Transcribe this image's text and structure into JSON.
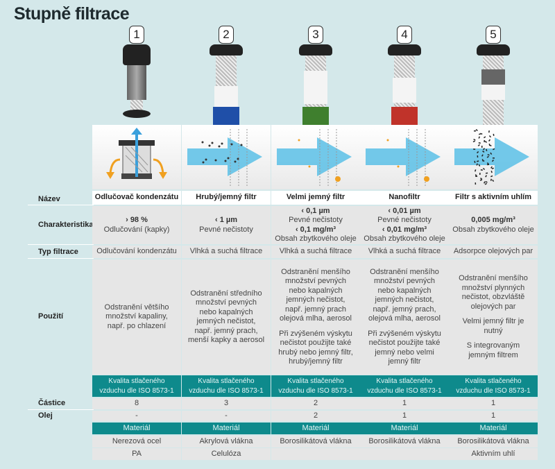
{
  "title": "Stupně filtrace",
  "stages": [
    {
      "number": "1",
      "sleeve_color": "#222222",
      "name": "Odlučovač kondenzátu",
      "char": [
        "› 98 %",
        "Odlučování (kapky)"
      ],
      "typ": "Odlučování kondenzátu",
      "pouziti": [
        "Odstranění většího množství kapaliny, např. po chlazení"
      ],
      "kvalita": "Kvalita stlačeného vzduchu dle ISO 8573-1",
      "castice": "8",
      "olej": "-",
      "material_header": "Materiál",
      "material": [
        "Nerezová ocel",
        "PA"
      ]
    },
    {
      "number": "2",
      "sleeve_color": "#1f4fa8",
      "name": "Hrubý/jemný filtr",
      "char": [
        "‹ 1 µm",
        "Pevné nečistoty"
      ],
      "typ": "Vlhká a suchá filtrace",
      "pouziti": [
        "Odstranění středního množství pevných nebo kapalných jemných nečistot, např. jemný prach, menší kapky a aerosol"
      ],
      "kvalita": "Kvalita stlačeného vzduchu dle ISO 8573-1",
      "castice": "3",
      "olej": "-",
      "material_header": "Materiál",
      "material": [
        "Akrylová vlákna",
        "Celulóza"
      ]
    },
    {
      "number": "3",
      "sleeve_color": "#3f7f2e",
      "name": "Velmi jemný filtr",
      "char": [
        "‹ 0,1 µm",
        "Pevné nečistoty",
        "‹ 0,1 mg/m³",
        "Obsah zbytkového oleje"
      ],
      "typ": "Vlhká a suchá filtrace",
      "pouziti": [
        "Odstranění menšího množství pevných nebo kapalných jemných nečistot, např. jemný prach olejová mlha, aerosol",
        "Při zvýšeném výskytu nečistot použijte také hrubý nebo jemný filtr, hrubý/jemný filtr"
      ],
      "kvalita": "Kvalita stlačeného vzduchu dle ISO 8573-1",
      "castice": "2",
      "olej": "2",
      "material_header": "Materiál",
      "material": [
        "Borosilikátová vlákna",
        ""
      ]
    },
    {
      "number": "4",
      "sleeve_color": "#c0332a",
      "name": "Nanofiltr",
      "char": [
        "‹ 0,01 µm",
        "Pevné nečistoty",
        "‹ 0,01 mg/m³",
        "Obsah zbytkového oleje"
      ],
      "typ": "Vlhká a suchá filtrace",
      "pouziti": [
        "Odstranění menšího množství pevných nebo kapalných jemných nečistot, např. jemný prach, olejová mlha, aerosol",
        "Při zvýšeném výskytu nečistot použijte také jemný nebo velmi jemný filtr"
      ],
      "kvalita": "Kvalita stlačeného vzduchu dle ISO 8573-1",
      "castice": "1",
      "olej": "1",
      "material_header": "Materiál",
      "material": [
        "Borosilikátová vlákna",
        ""
      ]
    },
    {
      "number": "5",
      "sleeve_color": "#dcdcdc",
      "name": "Filtr s aktivním uhlím",
      "char": [
        "",
        "",
        "0,005 mg/m³",
        "Obsah zbytkového oleje"
      ],
      "typ": "Adsorpce olejových par",
      "pouziti": [
        "Odstranění menšího množství plynných nečistot, obzvláště olejových par",
        "Velmi jemný filtr je nutný",
        "S integrovaným jemným filtrem"
      ],
      "kvalita": "Kvalita stlačeného vzduchu dle ISO 8573-1",
      "castice": "1",
      "olej": "1",
      "material_header": "Materiál",
      "material": [
        "Borosilikátová vlákna",
        "Aktivním uhlí"
      ]
    }
  ],
  "labels": {
    "nazev": "Název",
    "char": "Charakteristika",
    "typ": "Typ filtrace",
    "pouziti": "Použití",
    "castice": "Částice",
    "olej": "Olej"
  },
  "colors": {
    "teal_header": "#0e8a8c",
    "arrow": "#5bc0e6",
    "background": "#d4e8ea"
  }
}
